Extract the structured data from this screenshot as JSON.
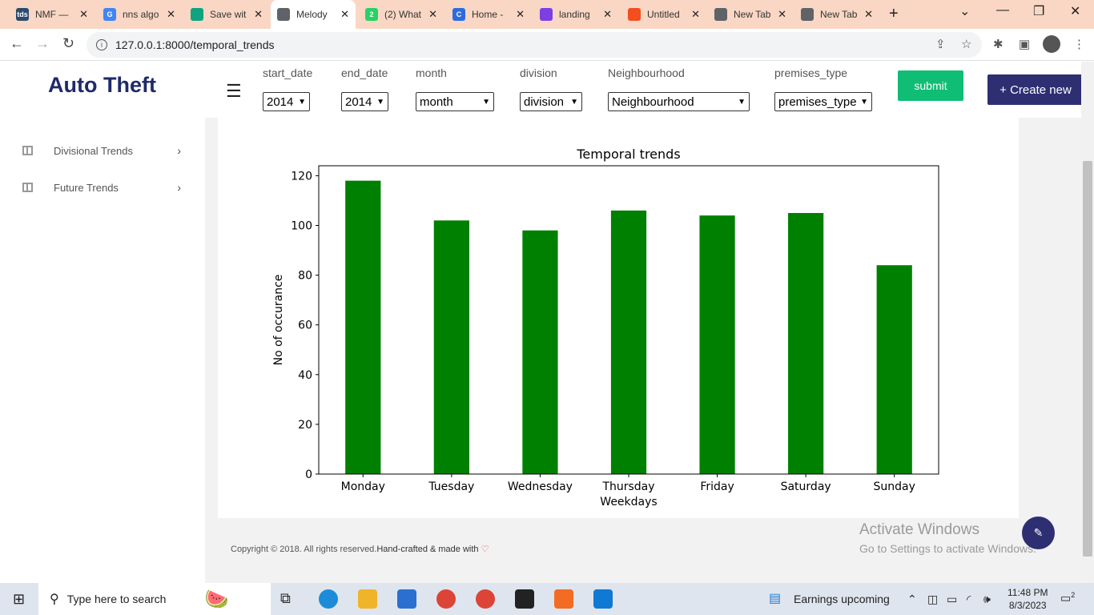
{
  "browser": {
    "tabs": [
      {
        "title": "NMF —",
        "fav": "tds",
        "color": "#2c4a6e"
      },
      {
        "title": "nns algo",
        "fav": "G",
        "color": "#4285f4"
      },
      {
        "title": "Save wit",
        "fav": "",
        "color": "#10a37f"
      },
      {
        "title": "Melody",
        "fav": "",
        "color": "#5f6368"
      },
      {
        "title": "(2) What",
        "fav": "2",
        "color": "#25d366"
      },
      {
        "title": "Home -",
        "fav": "C",
        "color": "#2d6cdf"
      },
      {
        "title": "landing",
        "fav": "",
        "color": "#7b3fe4"
      },
      {
        "title": "Untitled",
        "fav": "",
        "color": "#f24e1e"
      },
      {
        "title": "New Tab",
        "fav": "",
        "color": "#5f6368"
      },
      {
        "title": "New Tab",
        "fav": "",
        "color": "#5f6368"
      }
    ],
    "url": "127.0.0.1:8000/temporal_trends"
  },
  "sidebar": {
    "brand": "Auto Theft",
    "items": [
      {
        "label": "Divisional Trends"
      },
      {
        "label": "Future Trends"
      }
    ]
  },
  "filters": {
    "start_date": {
      "label": "start_date",
      "value": "2014"
    },
    "end_date": {
      "label": "end_date",
      "value": "2014"
    },
    "month": {
      "label": "month",
      "value": "month"
    },
    "division": {
      "label": "division",
      "value": "division"
    },
    "neighbourhood": {
      "label": "Neighbourhood",
      "value": "Neighbourhood"
    },
    "premises_type": {
      "label": "premises_type",
      "value": "premises_type"
    },
    "submit": "submit",
    "create": "+ Create new"
  },
  "chart_data": {
    "type": "bar",
    "title": "Temporal trends",
    "xlabel": "Weekdays",
    "ylabel": "No of occurance",
    "categories": [
      "Monday",
      "Tuesday",
      "Wednesday",
      "Thursday",
      "Friday",
      "Saturday",
      "Sunday"
    ],
    "values": [
      118,
      102,
      98,
      106,
      104,
      105,
      84
    ],
    "ylim": [
      0,
      124
    ],
    "yticks": [
      0,
      20,
      40,
      60,
      80,
      100,
      120
    ],
    "color": "#008000"
  },
  "footer": {
    "copyright": "Copyright © 2018. All rights reserved.",
    "crafted": "Hand-crafted & made with",
    "heart": "♡"
  },
  "watermark": {
    "line1": "Activate Windows",
    "line2": "Go to Settings to activate Windows."
  },
  "taskbar": {
    "search_placeholder": "Type here to search",
    "weather": "Earnings upcoming",
    "time": "11:48 PM",
    "date": "8/3/2023",
    "notifications": "2"
  }
}
